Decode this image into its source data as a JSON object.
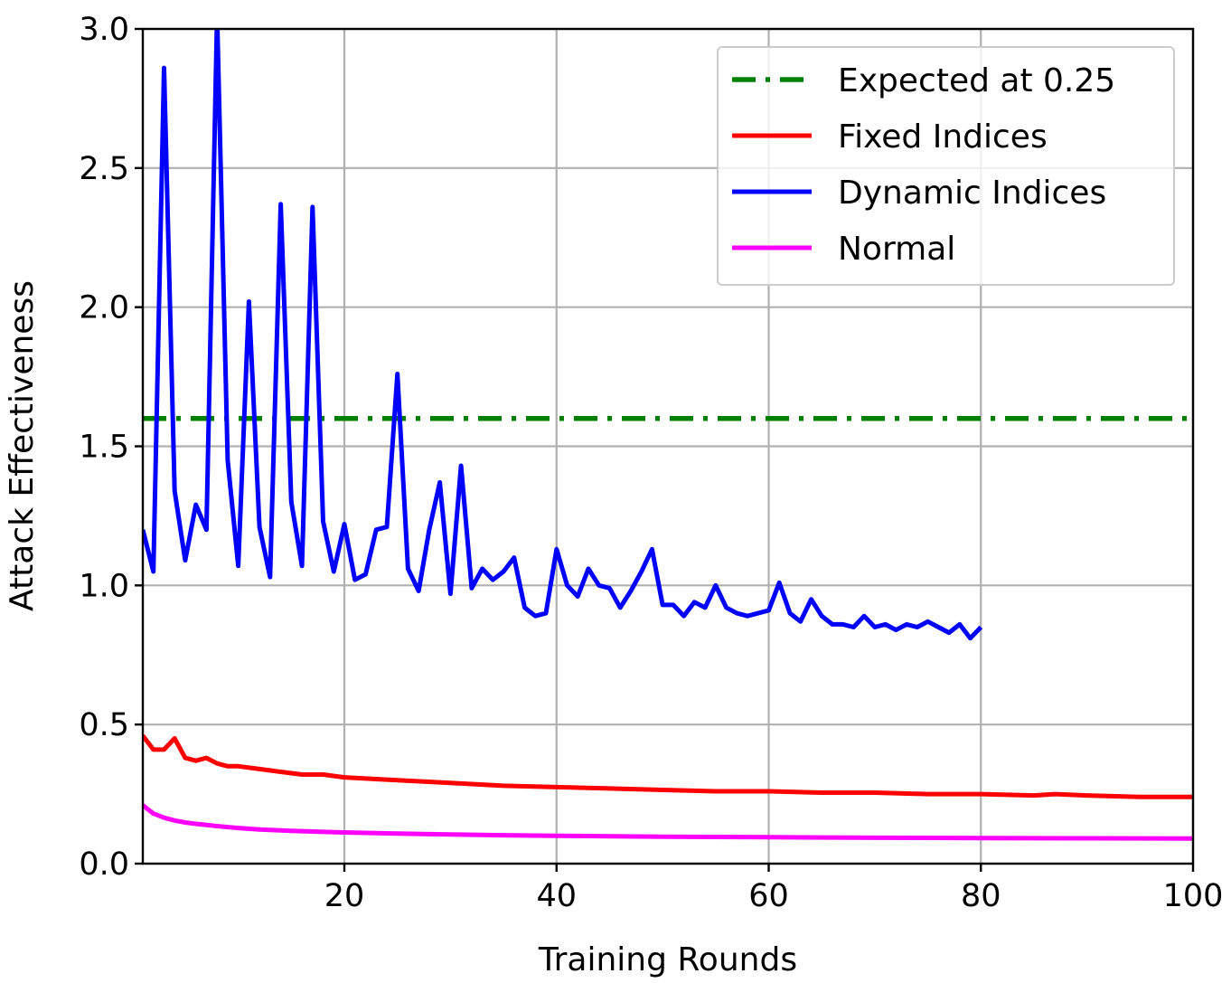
{
  "chart_data": {
    "type": "line",
    "title": "",
    "xlabel": "Training Rounds",
    "ylabel": "Attack Effectiveness",
    "xlim": [
      1,
      100
    ],
    "ylim": [
      0.0,
      3.0
    ],
    "grid": true,
    "legend_position": "top-right",
    "x_ticks": [
      20,
      40,
      60,
      80,
      100
    ],
    "y_ticks": [
      0.0,
      0.5,
      1.0,
      1.5,
      2.0,
      2.5,
      3.0
    ],
    "x_tick_labels": [
      "20",
      "40",
      "60",
      "80",
      "100"
    ],
    "y_tick_labels": [
      "0.0",
      "0.5",
      "1.0",
      "1.5",
      "2.0",
      "2.5",
      "3.0"
    ],
    "series": [
      {
        "name": "Expected at 0.25",
        "color": "#008000",
        "style": "dashdot",
        "x": [
          1,
          100
        ],
        "values": [
          1.6,
          1.6
        ]
      },
      {
        "name": "Fixed Indices",
        "color": "#ff0000",
        "style": "solid",
        "x": [
          1,
          2,
          3,
          4,
          5,
          6,
          7,
          8,
          9,
          10,
          12,
          14,
          16,
          18,
          20,
          25,
          30,
          35,
          40,
          45,
          50,
          55,
          60,
          65,
          70,
          75,
          80,
          85,
          87,
          90,
          95,
          100
        ],
        "values": [
          0.46,
          0.41,
          0.41,
          0.45,
          0.38,
          0.37,
          0.38,
          0.36,
          0.35,
          0.35,
          0.34,
          0.33,
          0.32,
          0.32,
          0.31,
          0.3,
          0.29,
          0.28,
          0.275,
          0.27,
          0.265,
          0.26,
          0.26,
          0.255,
          0.255,
          0.25,
          0.25,
          0.245,
          0.25,
          0.245,
          0.24,
          0.24
        ]
      },
      {
        "name": "Dynamic Indices",
        "color": "#0000ff",
        "style": "solid",
        "x": [
          1,
          2,
          3,
          4,
          5,
          6,
          7,
          8,
          9,
          10,
          11,
          12,
          13,
          14,
          15,
          16,
          17,
          18,
          19,
          20,
          21,
          22,
          23,
          24,
          25,
          26,
          27,
          28,
          29,
          30,
          31,
          32,
          33,
          34,
          35,
          36,
          37,
          38,
          39,
          40,
          41,
          42,
          43,
          44,
          45,
          46,
          47,
          48,
          49,
          50,
          51,
          52,
          53,
          54,
          55,
          56,
          57,
          58,
          59,
          60,
          61,
          62,
          63,
          64,
          65,
          66,
          67,
          68,
          69,
          70,
          71,
          72,
          73,
          74,
          75,
          76,
          77,
          78,
          79,
          80
        ],
        "values": [
          1.2,
          1.05,
          2.86,
          1.34,
          1.09,
          1.29,
          1.2,
          3.05,
          1.45,
          1.07,
          2.02,
          1.21,
          1.03,
          2.37,
          1.3,
          1.07,
          2.36,
          1.23,
          1.05,
          1.22,
          1.02,
          1.04,
          1.2,
          1.21,
          1.76,
          1.06,
          0.98,
          1.2,
          1.37,
          0.97,
          1.43,
          0.99,
          1.06,
          1.02,
          1.05,
          1.1,
          0.92,
          0.89,
          0.9,
          1.13,
          1.0,
          0.96,
          1.06,
          1.0,
          0.99,
          0.92,
          0.98,
          1.05,
          1.13,
          0.93,
          0.93,
          0.89,
          0.94,
          0.92,
          1.0,
          0.92,
          0.9,
          0.89,
          0.9,
          0.91,
          1.01,
          0.9,
          0.87,
          0.95,
          0.89,
          0.86,
          0.86,
          0.85,
          0.89,
          0.85,
          0.86,
          0.84,
          0.86,
          0.85,
          0.87,
          0.85,
          0.83,
          0.86,
          0.81,
          0.85
        ]
      },
      {
        "name": "Normal",
        "color": "#ff00ff",
        "style": "solid",
        "x": [
          1,
          2,
          3,
          4,
          5,
          6,
          8,
          10,
          12,
          15,
          18,
          20,
          25,
          30,
          35,
          40,
          50,
          60,
          70,
          80,
          90,
          100
        ],
        "values": [
          0.21,
          0.18,
          0.165,
          0.155,
          0.148,
          0.143,
          0.135,
          0.128,
          0.123,
          0.118,
          0.114,
          0.112,
          0.108,
          0.105,
          0.102,
          0.1,
          0.097,
          0.095,
          0.093,
          0.092,
          0.091,
          0.09
        ]
      }
    ]
  }
}
